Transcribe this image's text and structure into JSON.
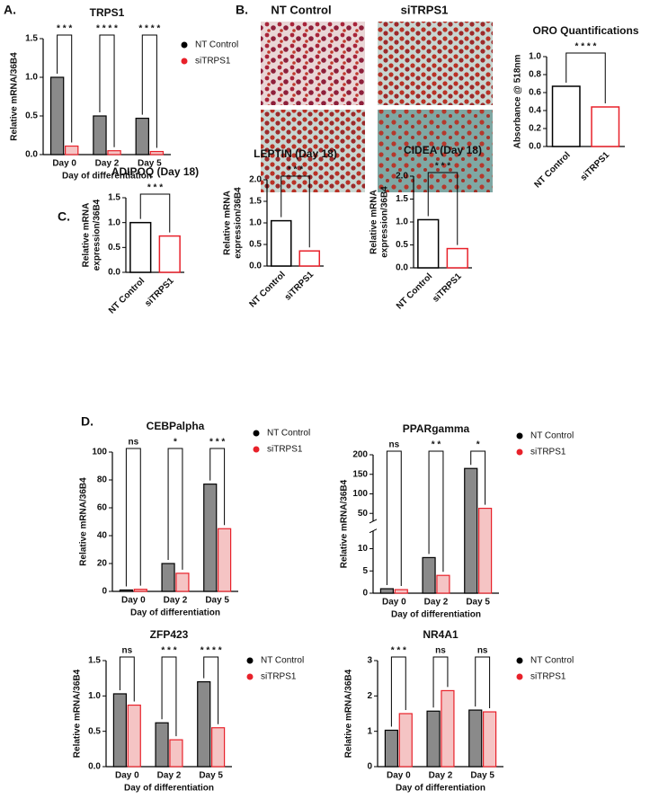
{
  "panel_labels": [
    "A.",
    "B.",
    "C.",
    "D."
  ],
  "image_labels": [
    "NT Control",
    "siTRPS1"
  ],
  "chart_data": [
    {
      "type": "grouped_bar",
      "title": "TRPS1",
      "ylabel": "Relative mRNA/36B4",
      "xlabel": "Day of differentiation",
      "categories": [
        "Day 0",
        "Day 2",
        "Day 5"
      ],
      "series": [
        {
          "name": "NT Control",
          "color": "#000000",
          "fill": "#8a8a8a",
          "values": [
            1.0,
            0.5,
            0.47
          ]
        },
        {
          "name": "siTRPS1",
          "color": "#e8212a",
          "fill": "#f5c4c4",
          "values": [
            0.11,
            0.05,
            0.04
          ]
        }
      ],
      "ylim": [
        0,
        1.5
      ],
      "yticks": [
        {
          "value": 0,
          "label": "0.0"
        },
        0.5,
        {
          "value": 1,
          "label": "1.0"
        },
        1.5
      ],
      "annotations": [
        "* * *",
        "* * * *",
        "* * * *"
      ]
    },
    {
      "type": "bar",
      "title": "ORO Quantifications",
      "ylabel": "Absorbance @ 518nm",
      "categories": [
        "NT Control",
        "siTRPS1"
      ],
      "values": [
        0.67,
        0.44
      ],
      "colors": [
        "#000000",
        "#e8212a"
      ],
      "ylim": [
        0,
        1.0
      ],
      "yticks": [
        {
          "value": 0,
          "label": "0.0"
        },
        0.2,
        0.4,
        0.6,
        0.8,
        {
          "value": 1,
          "label": "1.0"
        }
      ],
      "annotation": "* * * *"
    },
    {
      "type": "bar",
      "title": "ADIPOQ (Day 18)",
      "ylabel": [
        "Relative mRNA",
        "expression/36B4"
      ],
      "categories": [
        "NT Control",
        "siTRPS1"
      ],
      "values": [
        1.0,
        0.73
      ],
      "colors": [
        "#000000",
        "#e8212a"
      ],
      "ylim": [
        0,
        1.5
      ],
      "yticks": [
        {
          "value": 0,
          "label": "0.0"
        },
        0.5,
        {
          "value": 1,
          "label": "1.0"
        },
        1.5
      ],
      "annotation": "* * *"
    },
    {
      "type": "bar",
      "title": "LEPTIN (Day 18)",
      "ylabel": [
        "Relative mRNA",
        "expression/36B4"
      ],
      "categories": [
        "NT Control",
        "siTRPS1"
      ],
      "values": [
        1.05,
        0.35
      ],
      "colors": [
        "#000000",
        "#e8212a"
      ],
      "ylim": [
        0,
        2.0
      ],
      "yticks": [
        {
          "value": 0,
          "label": "0.0"
        },
        0.5,
        {
          "value": 1,
          "label": "1.0"
        },
        1.5,
        {
          "value": 2,
          "label": "2.0"
        }
      ],
      "annotation": "* * *"
    },
    {
      "type": "bar",
      "title": "CIDEA (Day 18)",
      "ylabel": [
        "Relative mRNA",
        "expression/36B4"
      ],
      "categories": [
        "NT Control",
        "siTRPS1"
      ],
      "values": [
        1.05,
        0.42
      ],
      "colors": [
        "#000000",
        "#e8212a"
      ],
      "ylim": [
        0,
        2.0
      ],
      "yticks": [
        {
          "value": 0,
          "label": "0.0"
        },
        0.5,
        {
          "value": 1,
          "label": "1.0"
        },
        1.5,
        {
          "value": 2,
          "label": "2.0"
        }
      ],
      "annotation": "* * *"
    },
    {
      "type": "grouped_bar",
      "title": "CEBPalpha",
      "ylabel": "Relative mRNA/36B4",
      "xlabel": "Day of differentiation",
      "categories": [
        "Day 0",
        "Day 2",
        "Day 5"
      ],
      "series": [
        {
          "name": "NT Control",
          "color": "#000000",
          "fill": "#8a8a8a",
          "values": [
            1,
            20,
            77
          ]
        },
        {
          "name": "siTRPS1",
          "color": "#e8212a",
          "fill": "#f5c4c4",
          "values": [
            1.5,
            13,
            45
          ]
        }
      ],
      "ylim": [
        0,
        100
      ],
      "yticks": [
        0,
        20,
        40,
        60,
        80,
        100
      ],
      "annotations": [
        "ns",
        "*",
        "* * *"
      ]
    },
    {
      "type": "grouped_bar",
      "title": "PPARgamma",
      "ylabel": "Relative mRNA/36B4",
      "xlabel": "Day of differentiation",
      "categories": [
        "Day 0",
        "Day 2",
        "Day 5"
      ],
      "series": [
        {
          "name": "NT Control",
          "color": "#000000",
          "fill": "#8a8a8a",
          "values": [
            1,
            8,
            165
          ]
        },
        {
          "name": "siTRPS1",
          "color": "#e8212a",
          "fill": "#f5c4c4",
          "values": [
            0.8,
            4,
            63
          ]
        }
      ],
      "ylim": [
        0,
        200
      ],
      "ybreak": [
        14,
        30
      ],
      "yticks": [
        0,
        5,
        10,
        50,
        100,
        150,
        200
      ],
      "annotations": [
        "ns",
        "* *",
        "*"
      ]
    },
    {
      "type": "grouped_bar",
      "title": "ZFP423",
      "ylabel": "Relative mRNA/36B4",
      "xlabel": "Day of differentiation",
      "categories": [
        "Day 0",
        "Day 2",
        "Day 5"
      ],
      "series": [
        {
          "name": "NT Control",
          "color": "#000000",
          "fill": "#8a8a8a",
          "values": [
            1.03,
            0.62,
            1.2
          ]
        },
        {
          "name": "siTRPS1",
          "color": "#e8212a",
          "fill": "#f5c4c4",
          "values": [
            0.87,
            0.38,
            0.55
          ]
        }
      ],
      "ylim": [
        0,
        1.5
      ],
      "yticks": [
        {
          "value": 0,
          "label": "0.0"
        },
        0.5,
        {
          "value": 1,
          "label": "1.0"
        },
        1.5
      ],
      "annotations": [
        "ns",
        "* * *",
        "* * * *"
      ]
    },
    {
      "type": "grouped_bar",
      "title": "NR4A1",
      "ylabel": "Relative mRNA/36B4",
      "xlabel": "Day of differentiation",
      "categories": [
        "Day 0",
        "Day 2",
        "Day 5"
      ],
      "series": [
        {
          "name": "NT Control",
          "color": "#000000",
          "fill": "#8a8a8a",
          "values": [
            1.03,
            1.57,
            1.6
          ]
        },
        {
          "name": "siTRPS1",
          "color": "#e8212a",
          "fill": "#f5c4c4",
          "values": [
            1.5,
            2.15,
            1.55
          ]
        }
      ],
      "ylim": [
        0,
        3
      ],
      "yticks": [
        0,
        1,
        2,
        3
      ],
      "annotations": [
        "* * *",
        "ns",
        "ns"
      ]
    }
  ]
}
